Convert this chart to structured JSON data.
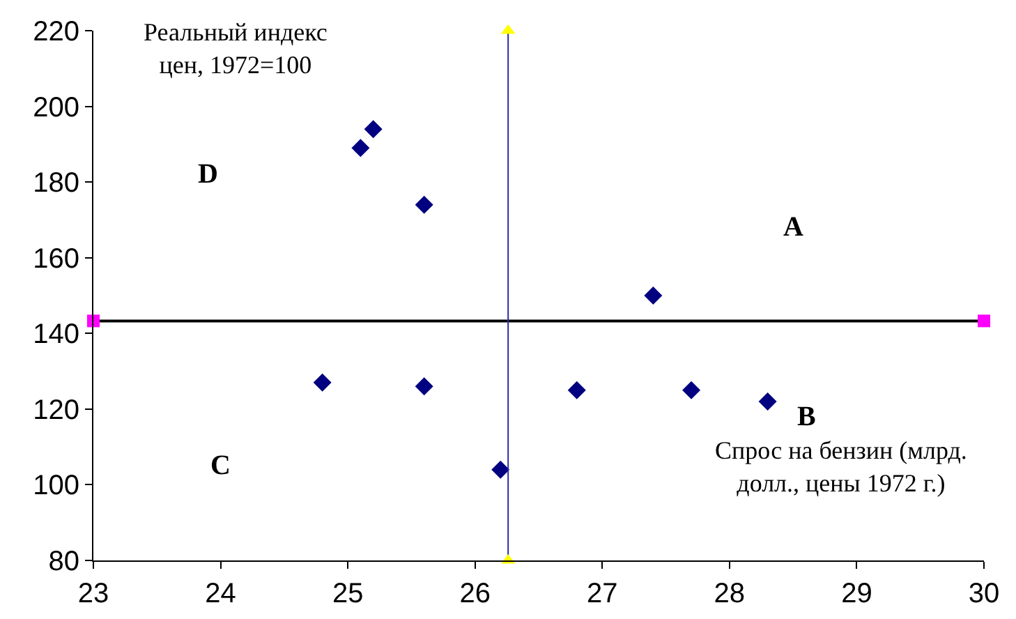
{
  "chart_data": {
    "type": "scatter",
    "xlabel": "Спрос на бензин (млрд. долл., цены 1972 г.)",
    "ylabel": "Реальный индекс цен, 1972=100",
    "annotations": [
      "A",
      "B",
      "C",
      "D"
    ],
    "x": [
      25.1,
      25.2,
      25.6,
      27.4,
      24.8,
      25.6,
      26.8,
      27.7,
      28.3,
      26.2
    ],
    "series": [
      {
        "color": "#000080",
        "marker": "diamond",
        "values": [
          189,
          194,
          174,
          150,
          127,
          126,
          125,
          125,
          122,
          104
        ]
      },
      {
        "type": "line",
        "x": [
          23,
          30
        ],
        "color": "#000000",
        "colors": [
          "#ff00ff",
          "#ff00ff"
        ],
        "marker": "square",
        "values": [
          143.3,
          143.3
        ]
      },
      {
        "type": "line",
        "x": [
          26.26,
          26.26
        ],
        "color": "#2a2aa0",
        "colors": [
          "#ffff00",
          "#ffff00"
        ],
        "marker": "triangle",
        "values": [
          80,
          220
        ]
      }
    ],
    "xlim": [
      23,
      30
    ],
    "xticks": [
      23,
      24,
      25,
      26,
      27,
      28,
      29,
      30
    ],
    "ylim": [
      80,
      220
    ],
    "yticks": [
      80,
      100,
      120,
      140,
      160,
      180,
      200,
      220
    ],
    "grid": false
  }
}
